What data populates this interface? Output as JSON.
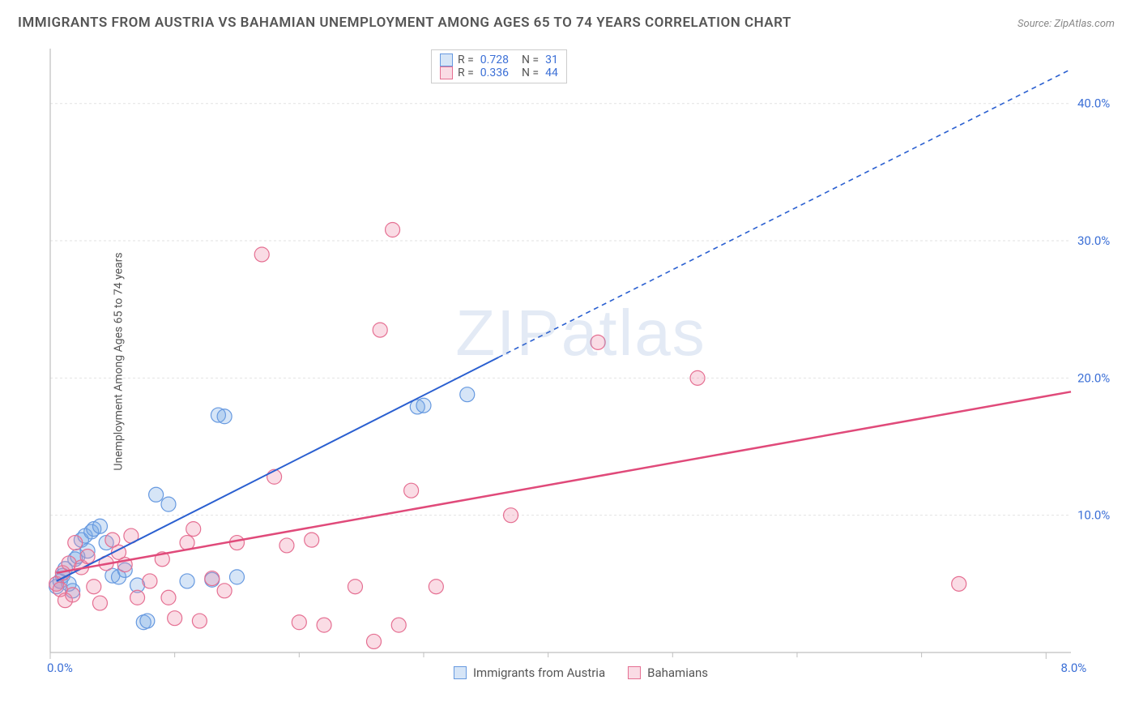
{
  "title": "IMMIGRANTS FROM AUSTRIA VS BAHAMIAN UNEMPLOYMENT AMONG AGES 65 TO 74 YEARS CORRELATION CHART",
  "source": "Source: ZipAtlas.com",
  "ylabel": "Unemployment Among Ages 65 to 74 years",
  "watermark_a": "ZIP",
  "watermark_b": "atlas",
  "chart": {
    "type": "scatter",
    "background_color": "#ffffff",
    "grid_color": "#e2e2e2",
    "axis_color": "#bfbfbf",
    "tick_font_color": "#3b6fd6",
    "tick_fontsize": 15,
    "xlim": [
      0,
      8.2
    ],
    "ylim": [
      0,
      44
    ],
    "xticks": [
      0.0,
      8.0
    ],
    "xtick_labels": [
      "0.0%",
      "8.0%"
    ],
    "yticks": [
      10.0,
      20.0,
      30.0,
      40.0
    ],
    "ytick_labels": [
      "10.0%",
      "20.0%",
      "30.0%",
      "40.0%"
    ],
    "x_minor_ticks": [
      1.0,
      2.0,
      3.0,
      4.0,
      5.0,
      6.0,
      7.0
    ],
    "series": [
      {
        "name": "Immigrants from Austria",
        "stroke": "#6699e0",
        "fill": "rgba(120,170,230,0.30)",
        "marker_r": 9,
        "R": "0.728",
        "N": "31",
        "trend": {
          "x1": 0.05,
          "y1": 5.2,
          "x2": 3.6,
          "y2": 21.5,
          "dashed_to_x": 8.2,
          "dashed_to_y": 42.5,
          "color": "#2a5fd0",
          "width": 2
        },
        "points": [
          [
            0.05,
            4.8
          ],
          [
            0.08,
            5.2
          ],
          [
            0.1,
            5.6
          ],
          [
            0.12,
            6.1
          ],
          [
            0.15,
            5.0
          ],
          [
            0.18,
            4.5
          ],
          [
            0.2,
            6.8
          ],
          [
            0.22,
            7.0
          ],
          [
            0.25,
            8.2
          ],
          [
            0.28,
            8.5
          ],
          [
            0.3,
            7.4
          ],
          [
            0.33,
            8.8
          ],
          [
            0.35,
            9.0
          ],
          [
            0.4,
            9.2
          ],
          [
            0.45,
            8.0
          ],
          [
            0.5,
            5.6
          ],
          [
            0.55,
            5.5
          ],
          [
            0.6,
            6.0
          ],
          [
            0.75,
            2.2
          ],
          [
            0.78,
            2.3
          ],
          [
            0.85,
            11.5
          ],
          [
            0.95,
            10.8
          ],
          [
            1.1,
            5.2
          ],
          [
            1.3,
            5.3
          ],
          [
            1.35,
            17.3
          ],
          [
            1.4,
            17.2
          ],
          [
            1.5,
            5.5
          ],
          [
            2.95,
            17.9
          ],
          [
            3.35,
            18.8
          ],
          [
            3.0,
            18.0
          ],
          [
            0.7,
            4.9
          ]
        ]
      },
      {
        "name": "Bahamians",
        "stroke": "#e56f92",
        "fill": "rgba(240,140,170,0.30)",
        "marker_r": 9,
        "R": "0.336",
        "N": "44",
        "trend": {
          "x1": 0.05,
          "y1": 5.8,
          "x2": 8.2,
          "y2": 19.0,
          "dashed_to_x": null,
          "dashed_to_y": null,
          "color": "#e04a7a",
          "width": 2.5
        },
        "points": [
          [
            0.05,
            5.0
          ],
          [
            0.08,
            4.6
          ],
          [
            0.1,
            5.8
          ],
          [
            0.12,
            3.8
          ],
          [
            0.15,
            6.5
          ],
          [
            0.18,
            4.2
          ],
          [
            0.2,
            8.0
          ],
          [
            0.25,
            6.2
          ],
          [
            0.3,
            7.0
          ],
          [
            0.35,
            4.8
          ],
          [
            0.4,
            3.6
          ],
          [
            0.45,
            6.5
          ],
          [
            0.5,
            8.2
          ],
          [
            0.55,
            7.3
          ],
          [
            0.6,
            6.4
          ],
          [
            0.65,
            8.5
          ],
          [
            0.7,
            4.0
          ],
          [
            0.8,
            5.2
          ],
          [
            0.9,
            6.8
          ],
          [
            1.0,
            2.5
          ],
          [
            1.1,
            8.0
          ],
          [
            1.2,
            2.3
          ],
          [
            1.3,
            5.4
          ],
          [
            1.4,
            4.5
          ],
          [
            1.5,
            8.0
          ],
          [
            1.7,
            29.0
          ],
          [
            1.8,
            12.8
          ],
          [
            1.9,
            7.8
          ],
          [
            2.0,
            2.2
          ],
          [
            2.1,
            8.2
          ],
          [
            2.2,
            2.0
          ],
          [
            2.45,
            4.8
          ],
          [
            2.6,
            0.8
          ],
          [
            2.65,
            23.5
          ],
          [
            2.75,
            30.8
          ],
          [
            2.8,
            2.0
          ],
          [
            2.9,
            11.8
          ],
          [
            3.1,
            4.8
          ],
          [
            3.7,
            10.0
          ],
          [
            4.4,
            22.6
          ],
          [
            5.2,
            20.0
          ],
          [
            7.3,
            5.0
          ],
          [
            0.95,
            4.0
          ],
          [
            1.15,
            9.0
          ]
        ]
      }
    ],
    "legend_bottom": [
      {
        "label": "Immigrants from Austria",
        "stroke": "#6699e0",
        "fill": "rgba(120,170,230,0.30)"
      },
      {
        "label": "Bahamians",
        "stroke": "#e56f92",
        "fill": "rgba(240,140,170,0.30)"
      }
    ]
  }
}
